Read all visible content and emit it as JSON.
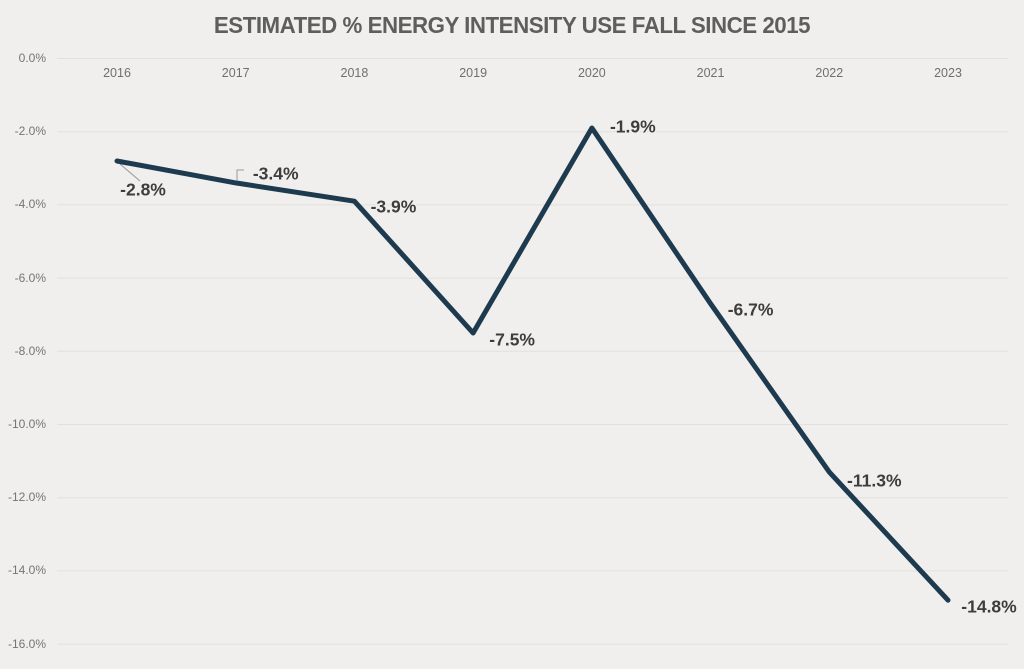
{
  "chart_data": {
    "type": "line",
    "title": "ESTIMATED % ENERGY INTENSITY USE FALL SINCE 2015",
    "categories": [
      "2016",
      "2017",
      "2018",
      "2019",
      "2020",
      "2021",
      "2022",
      "2023"
    ],
    "values": [
      -2.8,
      -3.4,
      -3.9,
      -7.5,
      -1.9,
      -6.7,
      -11.3,
      -14.8
    ],
    "point_labels": [
      "-2.8%",
      "-3.4%",
      "-3.9%",
      "-7.5%",
      "-1.9%",
      "-6.7%",
      "-11.3%",
      "-14.8%"
    ],
    "y_tick_values": [
      0,
      -2,
      -4,
      -6,
      -8,
      -10,
      -12,
      -14,
      -16
    ],
    "y_tick_labels": [
      "0.0%",
      "-2.0%",
      "-4.0%",
      "-6.0%",
      "-8.0%",
      "-10.0%",
      "-12.0%",
      "-14.0%",
      "-16.0%"
    ],
    "ylim": [
      0,
      -16
    ],
    "xlabel": "",
    "ylabel": "",
    "grid": true,
    "legend": "none",
    "colors": {
      "line": "#1d3a4f",
      "background": "#f0efed",
      "gridline": "#e1e0dd",
      "title": "#5e5e5e",
      "tick_label": "#757575",
      "data_label": "#3d3d3d",
      "leader": "#9a9a9a"
    }
  }
}
